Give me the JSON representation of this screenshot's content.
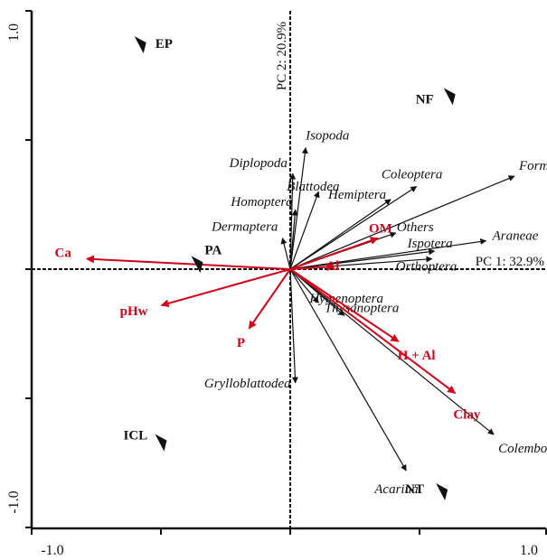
{
  "chart_data": {
    "type": "scatter",
    "title": "",
    "xlabel": "PC 1: 32.9%",
    "ylabel": "PC 2: 20.9%",
    "xlim": [
      -1.0,
      1.0
    ],
    "ylim": [
      -1.0,
      1.0
    ],
    "x_tick_labels": [
      "-1.0",
      "1.0"
    ],
    "y_tick_labels": [
      "1.0",
      "-1.0"
    ],
    "grid": false,
    "colors": {
      "species": "#111111",
      "environment": "#d0021b",
      "sites": "#111111"
    },
    "series": [
      {
        "name": "",
        "kind": "species-arrows",
        "points": [
          {
            "label": "Isopoda",
            "x": 0.06,
            "y": 0.47
          },
          {
            "label": "Diplopoda",
            "x": 0.01,
            "y": 0.37
          },
          {
            "label": "Blattodea",
            "x": 0.11,
            "y": 0.3
          },
          {
            "label": "Homoptera",
            "x": 0.02,
            "y": 0.23
          },
          {
            "label": "Dermaptera",
            "x": -0.03,
            "y": 0.12
          },
          {
            "label": "Coleoptera",
            "x": 0.49,
            "y": 0.32
          },
          {
            "label": "Formicidae",
            "x": 0.87,
            "y": 0.36
          },
          {
            "label": "Hemiptera",
            "x": 0.39,
            "y": 0.27
          },
          {
            "label": "Others",
            "x": 0.41,
            "y": 0.14
          },
          {
            "label": "Araneae",
            "x": 0.76,
            "y": 0.11
          },
          {
            "label": "Ispotera",
            "x": 0.56,
            "y": 0.07
          },
          {
            "label": "Orthoptera",
            "x": 0.55,
            "y": 0.04
          },
          {
            "label": "Hymenoptera",
            "x": 0.11,
            "y": -0.13
          },
          {
            "label": "Thysanoptera",
            "x": 0.21,
            "y": -0.18
          },
          {
            "label": "Grylloblattodea",
            "x": 0.02,
            "y": -0.44
          },
          {
            "label": "Colembolla",
            "x": 0.79,
            "y": -0.64
          },
          {
            "label": "Acarina",
            "x": 0.45,
            "y": -0.78
          }
        ]
      },
      {
        "name": "",
        "kind": "environment-arrows",
        "points": [
          {
            "label": "Ca",
            "x": -0.79,
            "y": 0.04
          },
          {
            "label": "OM",
            "x": 0.34,
            "y": 0.12
          },
          {
            "label": "Al",
            "x": 0.17,
            "y": 0.01
          },
          {
            "label": "pHw",
            "x": -0.5,
            "y": -0.14
          },
          {
            "label": "P",
            "x": -0.16,
            "y": -0.23
          },
          {
            "label": "H + Al",
            "x": 0.42,
            "y": -0.28
          },
          {
            "label": "Clay",
            "x": 0.64,
            "y": -0.48
          }
        ]
      },
      {
        "name": "",
        "kind": "sites",
        "points": [
          {
            "label": "EP",
            "x": -0.58,
            "y": 0.87
          },
          {
            "label": "NF",
            "x": 0.62,
            "y": 0.67
          },
          {
            "label": "PA",
            "x": -0.36,
            "y": 0.02
          },
          {
            "label": "ICL",
            "x": -0.5,
            "y": -0.67
          },
          {
            "label": "NT",
            "x": 0.59,
            "y": -0.86
          }
        ]
      }
    ]
  }
}
